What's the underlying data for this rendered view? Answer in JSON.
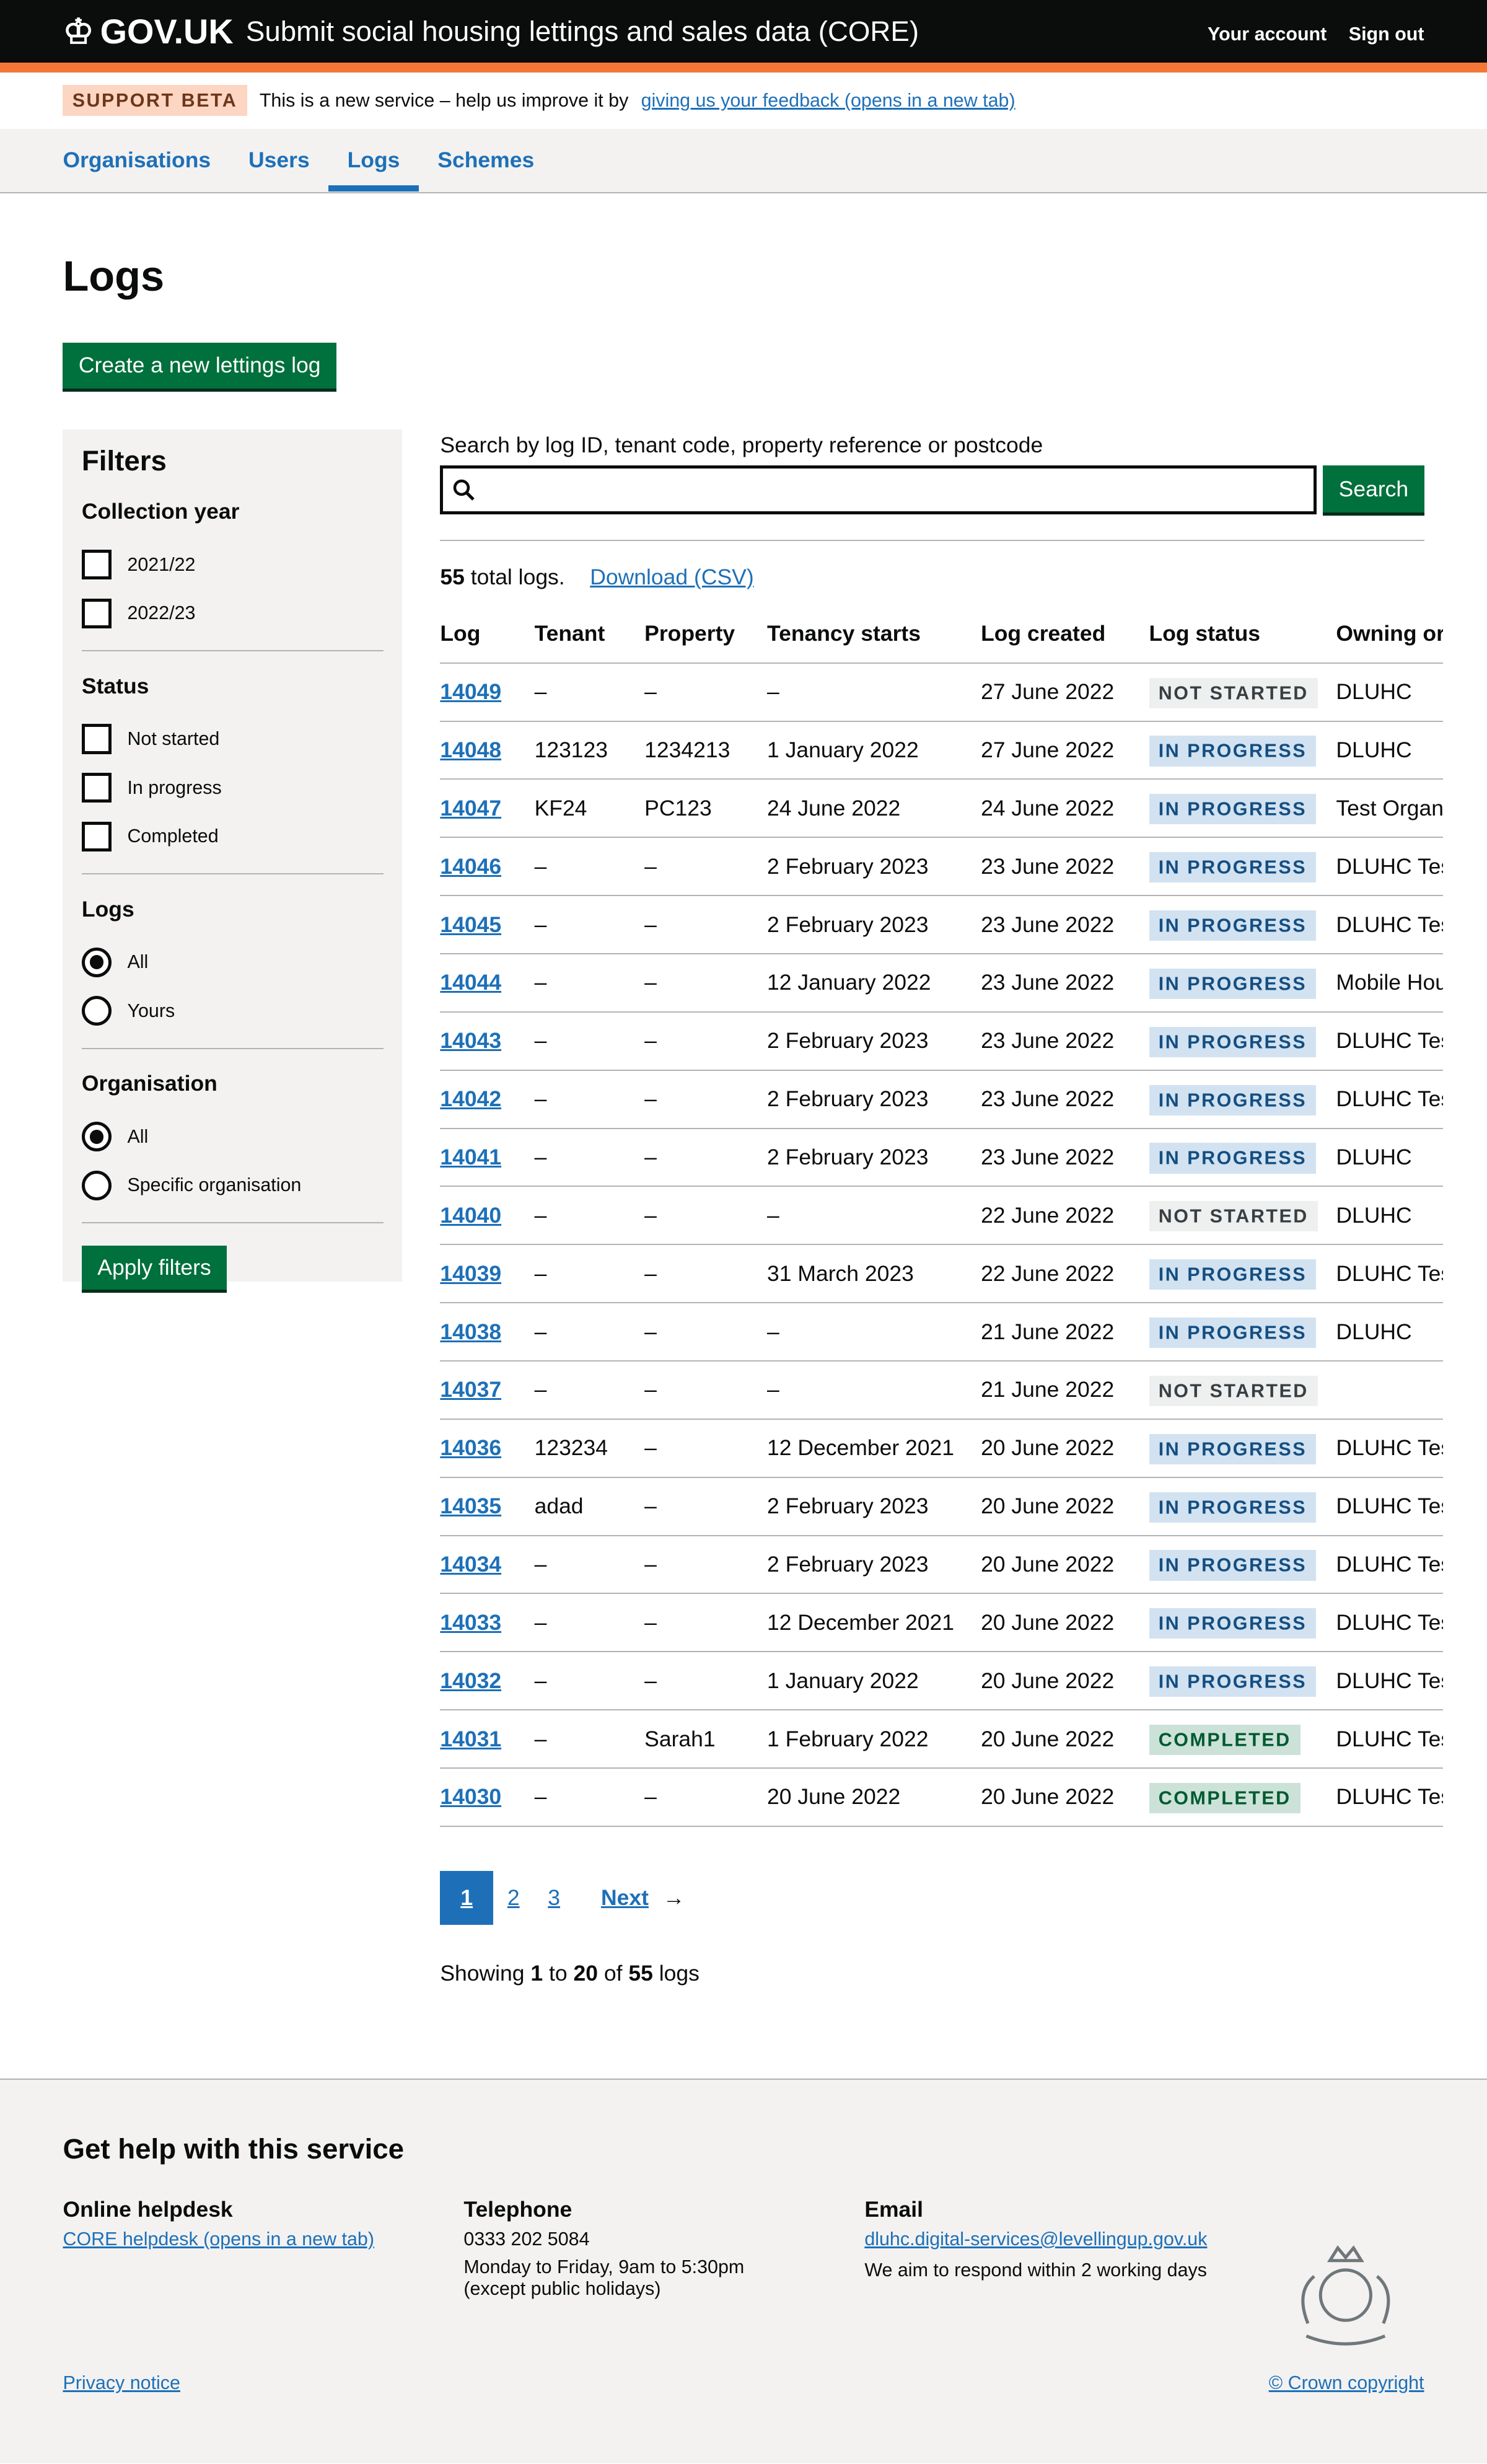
{
  "header": {
    "logo": "GOV.UK",
    "service": "Submit social housing lettings and sales data (CORE)",
    "your_account": "Your account",
    "sign_out": "Sign out"
  },
  "banner": {
    "tag": "SUPPORT BETA",
    "text": "This is a new service – help us improve it by",
    "link": "giving us your feedback (opens in a new tab)"
  },
  "nav": {
    "items": [
      "Organisations",
      "Users",
      "Logs",
      "Schemes"
    ],
    "active": "Logs"
  },
  "page": {
    "title": "Logs",
    "create_button": "Create a new lettings log"
  },
  "filters": {
    "title": "Filters",
    "collection_year": {
      "label": "Collection year",
      "options": [
        "2021/22",
        "2022/23"
      ]
    },
    "status": {
      "label": "Status",
      "options": [
        "Not started",
        "In progress",
        "Completed"
      ]
    },
    "logs": {
      "label": "Logs",
      "options": [
        "All",
        "Yours"
      ],
      "selected": "All"
    },
    "organisation": {
      "label": "Organisation",
      "options": [
        "All",
        "Specific organisation"
      ],
      "selected": "All"
    },
    "apply": "Apply filters"
  },
  "search": {
    "label": "Search by log ID, tenant code, property reference or postcode",
    "value": "",
    "button": "Search"
  },
  "summary": {
    "count": "55",
    "suffix": " total logs.",
    "download": "Download (CSV)"
  },
  "table": {
    "headers": [
      "Log",
      "Tenant",
      "Property",
      "Tenancy starts",
      "Log created",
      "Log status",
      "Owning or"
    ],
    "rows": [
      [
        "14049",
        "–",
        "–",
        "–",
        "27 June 2022",
        "NOT STARTED",
        "DLUHC"
      ],
      [
        "14048",
        "123123",
        "1234213",
        "1 January 2022",
        "27 June 2022",
        "IN PROGRESS",
        "DLUHC"
      ],
      [
        "14047",
        "KF24",
        "PC123",
        "24 June 2022",
        "24 June 2022",
        "IN PROGRESS",
        "Test Organ"
      ],
      [
        "14046",
        "–",
        "–",
        "2 February 2023",
        "23 June 2022",
        "IN PROGRESS",
        "DLUHC Tes"
      ],
      [
        "14045",
        "–",
        "–",
        "2 February 2023",
        "23 June 2022",
        "IN PROGRESS",
        "DLUHC Tes"
      ],
      [
        "14044",
        "–",
        "–",
        "12 January 2022",
        "23 June 2022",
        "IN PROGRESS",
        "Mobile Hou"
      ],
      [
        "14043",
        "–",
        "–",
        "2 February 2023",
        "23 June 2022",
        "IN PROGRESS",
        "DLUHC Tes"
      ],
      [
        "14042",
        "–",
        "–",
        "2 February 2023",
        "23 June 2022",
        "IN PROGRESS",
        "DLUHC Tes"
      ],
      [
        "14041",
        "–",
        "–",
        "2 February 2023",
        "23 June 2022",
        "IN PROGRESS",
        "DLUHC"
      ],
      [
        "14040",
        "–",
        "–",
        "–",
        "22 June 2022",
        "NOT STARTED",
        "DLUHC"
      ],
      [
        "14039",
        "–",
        "–",
        "31 March 2023",
        "22 June 2022",
        "IN PROGRESS",
        "DLUHC Tes"
      ],
      [
        "14038",
        "–",
        "–",
        "–",
        "21 June 2022",
        "IN PROGRESS",
        "DLUHC"
      ],
      [
        "14037",
        "–",
        "–",
        "–",
        "21 June 2022",
        "NOT STARTED",
        ""
      ],
      [
        "14036",
        "123234",
        "–",
        "12 December 2021",
        "20 June 2022",
        "IN PROGRESS",
        "DLUHC Tes"
      ],
      [
        "14035",
        "adad",
        "–",
        "2 February 2023",
        "20 June 2022",
        "IN PROGRESS",
        "DLUHC Tes"
      ],
      [
        "14034",
        "–",
        "–",
        "2 February 2023",
        "20 June 2022",
        "IN PROGRESS",
        "DLUHC Tes"
      ],
      [
        "14033",
        "–",
        "–",
        "12 December 2021",
        "20 June 2022",
        "IN PROGRESS",
        "DLUHC Tes"
      ],
      [
        "14032",
        "–",
        "–",
        "1 January 2022",
        "20 June 2022",
        "IN PROGRESS",
        "DLUHC Tes"
      ],
      [
        "14031",
        "–",
        "Sarah1",
        "1 February 2022",
        "20 June 2022",
        "COMPLETED",
        "DLUHC Tes"
      ],
      [
        "14030",
        "–",
        "–",
        "20 June 2022",
        "20 June 2022",
        "COMPLETED",
        "DLUHC Tes"
      ]
    ]
  },
  "pagination": {
    "pages": [
      "1",
      "2",
      "3"
    ],
    "current": "1",
    "next": "Next",
    "showing": {
      "a": "Showing ",
      "from": "1",
      "b": " to ",
      "to": "20",
      "c": " of ",
      "total": "55",
      "d": " logs"
    }
  },
  "footer": {
    "title": "Get help with this service",
    "helpdesk": {
      "title": "Online helpdesk",
      "link": "CORE helpdesk (opens in a new tab)"
    },
    "telephone": {
      "title": "Telephone",
      "number": "0333 202 5084",
      "hours": "Monday to Friday, 9am to 5:30pm",
      "note": "(except public holidays)"
    },
    "email": {
      "title": "Email",
      "address": "dluhc.digital-services@levellingup.gov.uk",
      "note": "We aim to respond within 2 working days"
    },
    "privacy": "Privacy notice",
    "copyright": "© Crown copyright"
  },
  "colors": {
    "header": "#0b0c0c",
    "accent": "#f47738",
    "link": "#1d70b8",
    "button": "#00703c"
  }
}
